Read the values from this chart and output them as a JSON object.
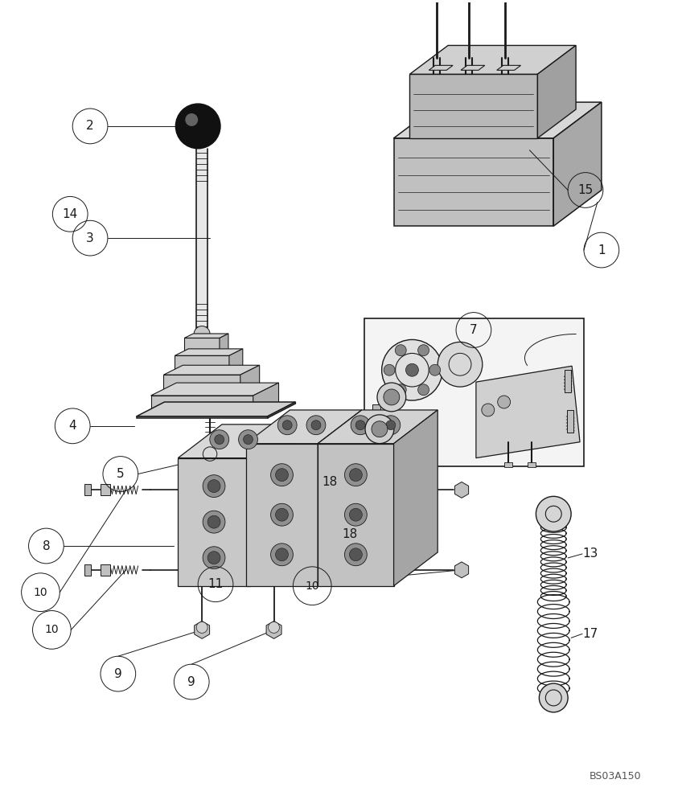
{
  "bg_color": "#ffffff",
  "lc": "#1a1a1a",
  "fig_w": 8.48,
  "fig_h": 10.0,
  "watermark": "BS03A150",
  "part_numbers": [
    "1",
    "2",
    "3",
    "4",
    "5",
    "7",
    "8",
    "9",
    "10",
    "11",
    "13",
    "14",
    "15",
    "17",
    "18"
  ]
}
